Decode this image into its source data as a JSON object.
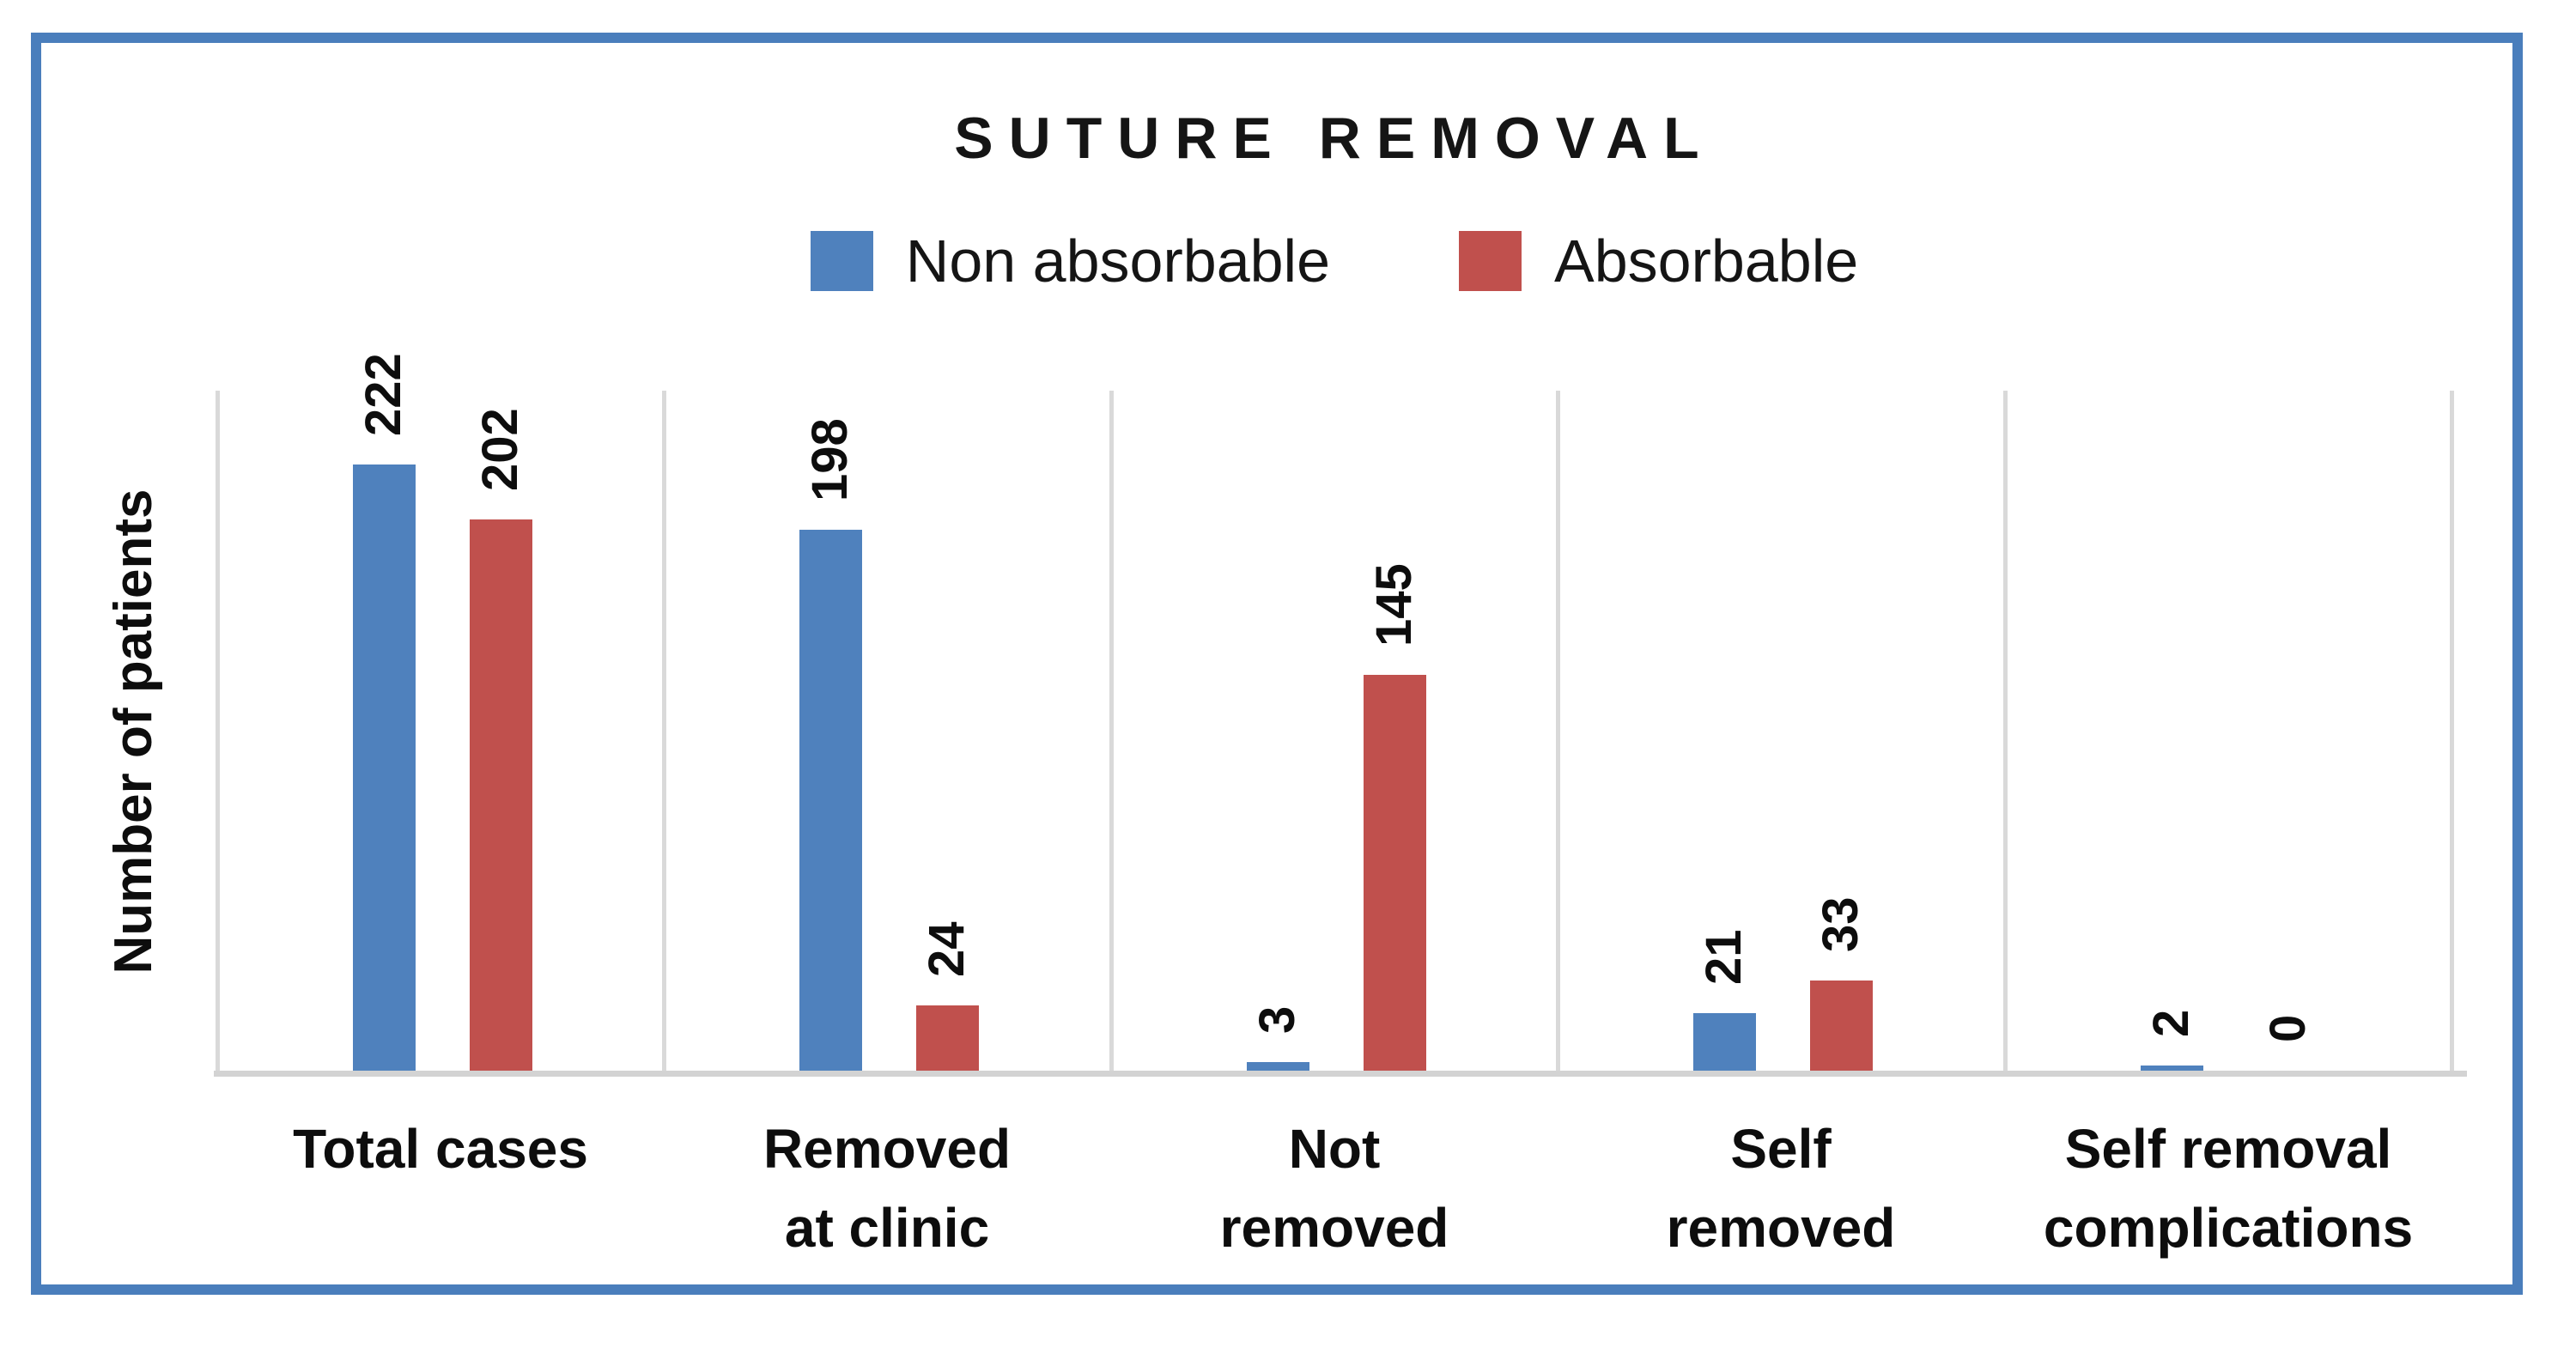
{
  "title": "SUTURE REMOVAL",
  "y_axis_title": "Number of patients",
  "legend": {
    "items": [
      {
        "label": "Non absorbable",
        "color": "#4f81bd"
      },
      {
        "label": "Absorbable",
        "color": "#c0504d"
      }
    ]
  },
  "colors": {
    "frame_border": "#4a7ebc",
    "bar_blue": "#4f81bd",
    "bar_red": "#c0504d",
    "axis_gray": "#d9d9d9",
    "text": "#0d0d0d"
  },
  "chart_data": {
    "type": "bar",
    "title": "SUTURE REMOVAL",
    "xlabel": "",
    "ylabel": "Number of patients",
    "categories": [
      "Total cases",
      "Removed\nat clinic",
      "Not\nremoved",
      "Self\nremoved",
      "Self removal\ncomplications"
    ],
    "series": [
      {
        "name": "Non absorbable",
        "color": "#4f81bd",
        "values": [
          222,
          198,
          3,
          21,
          2
        ]
      },
      {
        "name": "Absorbable",
        "color": "#c0504d",
        "values": [
          202,
          24,
          145,
          33,
          0
        ]
      }
    ],
    "ylim": [
      0,
      250
    ],
    "y_axis_tick_labels_visible": false,
    "grid": "vertical category separators only",
    "legend_position": "top-center",
    "data_labels": "values rotated 90° above each bar"
  }
}
